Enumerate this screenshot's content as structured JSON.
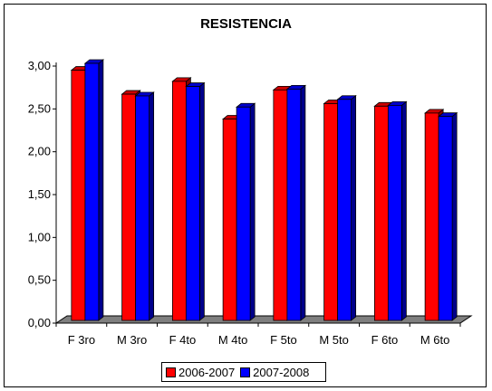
{
  "chart_data": {
    "type": "bar",
    "title": "RESISTENCIA",
    "categories": [
      "F 3ro",
      "M 3ro",
      "F 4to",
      "M 4to",
      "F 5to",
      "M 5to",
      "F 6to",
      "M 6to"
    ],
    "series": [
      {
        "name": "2006-2007",
        "color": "#ff0000",
        "values": [
          2.92,
          2.64,
          2.79,
          2.35,
          2.69,
          2.53,
          2.5,
          2.42
        ]
      },
      {
        "name": "2007-2008",
        "color": "#0000ff",
        "values": [
          3.0,
          2.62,
          2.73,
          2.49,
          2.7,
          2.58,
          2.51,
          2.38
        ]
      }
    ],
    "y_ticks": [
      "0,00",
      "0,50",
      "1,00",
      "1,50",
      "2,00",
      "2,50",
      "3,00"
    ],
    "ylim": [
      0,
      3
    ],
    "xlabel": "",
    "ylabel": "",
    "grid": false,
    "legend_position": "bottom",
    "style": "3d-bars"
  }
}
